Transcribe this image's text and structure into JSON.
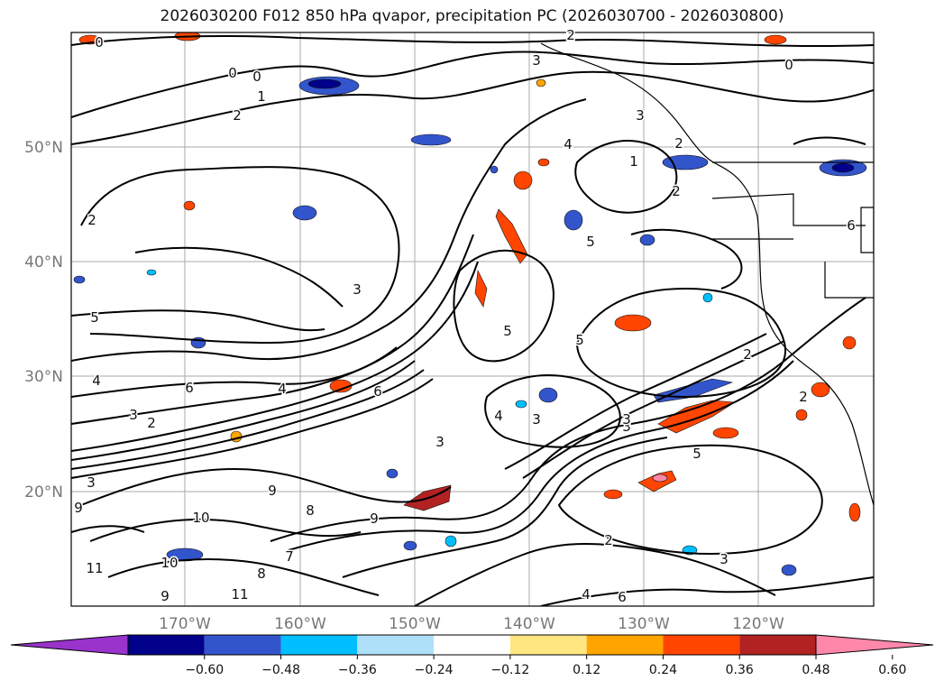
{
  "title": "2026030200 F012 850 hPa qvapor, precipitation PC (2026030700 - 2026030800)",
  "map": {
    "lat_labels": [
      "50°N",
      "40°N",
      "30°N",
      "20°N"
    ],
    "lon_labels": [
      "170°W",
      "160°W",
      "150°W",
      "140°W",
      "130°W",
      "120°W"
    ],
    "contour_labels": [
      "0",
      "0",
      "0",
      "3",
      "0",
      "1",
      "2",
      "2",
      "3",
      "4",
      "1",
      "2",
      "2",
      "6",
      "5",
      "3",
      "5",
      "5",
      "2",
      "3",
      "4",
      "6",
      "3",
      "2",
      "3",
      "6",
      "4",
      "5",
      "2",
      "3",
      "3",
      "9",
      "10",
      "8",
      "9",
      "11",
      "10",
      "8",
      "7",
      "9",
      "11",
      "4",
      "6",
      "9",
      "2",
      "3",
      "3",
      "4",
      "5",
      "2"
    ]
  },
  "colorbar": {
    "ticks": [
      "−0.60",
      "−0.48",
      "−0.36",
      "−0.24",
      "−0.12",
      "0.12",
      "0.24",
      "0.36",
      "0.48",
      "0.60"
    ],
    "colors": [
      "#9933cc",
      "#00008b",
      "#3355cc",
      "#00bfff",
      "#aee0fa",
      "#ffffff",
      "#ffe680",
      "#ffa500",
      "#ff4500",
      "#b22222",
      "#ff88aa"
    ]
  }
}
